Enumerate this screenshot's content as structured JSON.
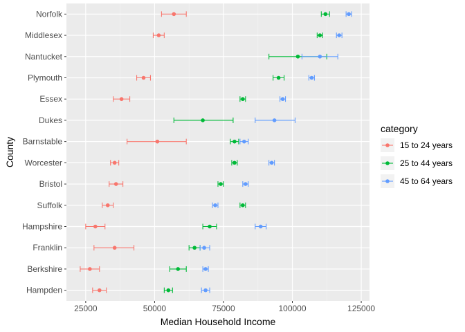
{
  "chart_data": {
    "type": "scatter",
    "subtype": "point-with-horizontal-errorbars",
    "title": "",
    "xlabel": "Median Household Income",
    "ylabel": "County",
    "xlim": [
      18000,
      128000
    ],
    "xticks": [
      25000,
      50000,
      75000,
      100000,
      125000
    ],
    "grid": true,
    "legend": {
      "title": "category",
      "position": "right"
    },
    "categories": [
      "Hampden",
      "Berkshire",
      "Franklin",
      "Hampshire",
      "Suffolk",
      "Bristol",
      "Worcester",
      "Barnstable",
      "Dukes",
      "Essex",
      "Plymouth",
      "Nantucket",
      "Middlesex",
      "Norfolk"
    ],
    "series": [
      {
        "name": "15 to 24 years",
        "color": "#F8766D",
        "values": [
          {
            "county": "Norfolk",
            "x": 57000,
            "low": 52500,
            "high": 61500
          },
          {
            "county": "Middlesex",
            "x": 51500,
            "low": 49500,
            "high": 53500
          },
          {
            "county": "Plymouth",
            "x": 46000,
            "low": 43500,
            "high": 48500
          },
          {
            "county": "Essex",
            "x": 38000,
            "low": 35000,
            "high": 41000
          },
          {
            "county": "Barnstable",
            "x": 51000,
            "low": 40000,
            "high": 61500
          },
          {
            "county": "Worcester",
            "x": 35500,
            "low": 34000,
            "high": 37000
          },
          {
            "county": "Bristol",
            "x": 36000,
            "low": 33500,
            "high": 38500
          },
          {
            "county": "Suffolk",
            "x": 33000,
            "low": 31000,
            "high": 35000
          },
          {
            "county": "Hampshire",
            "x": 28500,
            "low": 25000,
            "high": 32000
          },
          {
            "county": "Franklin",
            "x": 35500,
            "low": 28000,
            "high": 42500
          },
          {
            "county": "Berkshire",
            "x": 26500,
            "low": 23000,
            "high": 30000
          },
          {
            "county": "Hampden",
            "x": 30000,
            "low": 27500,
            "high": 32500
          }
        ]
      },
      {
        "name": "25 to 44 years",
        "color": "#00BA38",
        "values": [
          {
            "county": "Norfolk",
            "x": 112000,
            "low": 110500,
            "high": 113500
          },
          {
            "county": "Middlesex",
            "x": 110000,
            "low": 109000,
            "high": 111000
          },
          {
            "county": "Nantucket",
            "x": 102000,
            "low": 91500,
            "high": 112500
          },
          {
            "county": "Plymouth",
            "x": 95000,
            "low": 93000,
            "high": 97000
          },
          {
            "county": "Essex",
            "x": 82000,
            "low": 81000,
            "high": 83000
          },
          {
            "county": "Dukes",
            "x": 67500,
            "low": 57000,
            "high": 78500
          },
          {
            "county": "Barnstable",
            "x": 79000,
            "low": 77500,
            "high": 80500
          },
          {
            "county": "Worcester",
            "x": 79000,
            "low": 78000,
            "high": 80000
          },
          {
            "county": "Bristol",
            "x": 74000,
            "low": 73000,
            "high": 75000
          },
          {
            "county": "Suffolk",
            "x": 82000,
            "low": 81000,
            "high": 83000
          },
          {
            "county": "Hampshire",
            "x": 70000,
            "low": 67500,
            "high": 72500
          },
          {
            "county": "Franklin",
            "x": 64500,
            "low": 62500,
            "high": 66500
          },
          {
            "county": "Berkshire",
            "x": 58500,
            "low": 55500,
            "high": 61500
          },
          {
            "county": "Hampden",
            "x": 55000,
            "low": 53500,
            "high": 56500
          }
        ]
      },
      {
        "name": "45 to 64 years",
        "color": "#619CFF",
        "values": [
          {
            "county": "Norfolk",
            "x": 120500,
            "low": 119500,
            "high": 121500
          },
          {
            "county": "Middlesex",
            "x": 117000,
            "low": 116000,
            "high": 118000
          },
          {
            "county": "Nantucket",
            "x": 110000,
            "low": 103500,
            "high": 116500
          },
          {
            "county": "Plymouth",
            "x": 107000,
            "low": 106000,
            "high": 108000
          },
          {
            "county": "Essex",
            "x": 96500,
            "low": 95500,
            "high": 97500
          },
          {
            "county": "Dukes",
            "x": 93500,
            "low": 86500,
            "high": 101000
          },
          {
            "county": "Barnstable",
            "x": 82500,
            "low": 81000,
            "high": 84000
          },
          {
            "county": "Worcester",
            "x": 92500,
            "low": 91500,
            "high": 93500
          },
          {
            "county": "Bristol",
            "x": 83000,
            "low": 82000,
            "high": 84000
          },
          {
            "county": "Suffolk",
            "x": 72000,
            "low": 71000,
            "high": 73000
          },
          {
            "county": "Hampshire",
            "x": 88500,
            "low": 86500,
            "high": 90500
          },
          {
            "county": "Franklin",
            "x": 68000,
            "low": 66500,
            "high": 70000
          },
          {
            "county": "Berkshire",
            "x": 68500,
            "low": 67500,
            "high": 69500
          },
          {
            "county": "Hampden",
            "x": 68500,
            "low": 67000,
            "high": 70000
          }
        ]
      }
    ]
  }
}
